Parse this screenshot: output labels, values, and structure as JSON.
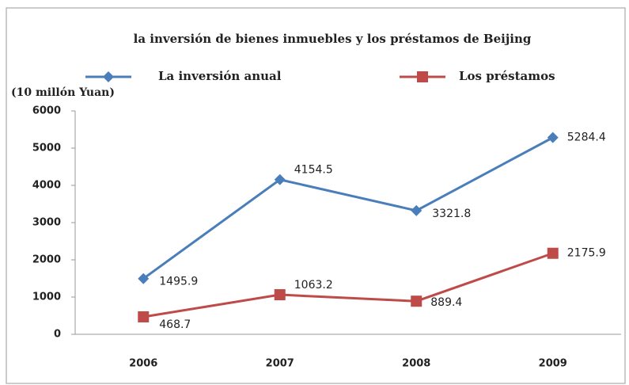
{
  "chart_data": {
    "type": "line",
    "title": "la inversión de bienes inmuebles y los préstamos de Beijing",
    "y_label": "(10 millón Yuan)",
    "categories": [
      "2006",
      "2007",
      "2008",
      "2009"
    ],
    "series": [
      {
        "name": "La inversión anual",
        "color": "#4a7ebb",
        "marker": "diamond",
        "values": [
          1495.9,
          4154.5,
          3321.8,
          5284.4
        ]
      },
      {
        "name": "Los préstamos",
        "color": "#be4b48",
        "marker": "square",
        "values": [
          468.7,
          1063.2,
          889.4,
          2175.9
        ]
      }
    ],
    "ylim": [
      0,
      6000
    ],
    "yticks": [
      0,
      1000,
      2000,
      3000,
      4000,
      5000,
      6000
    ],
    "grid": false,
    "legend": "top"
  }
}
